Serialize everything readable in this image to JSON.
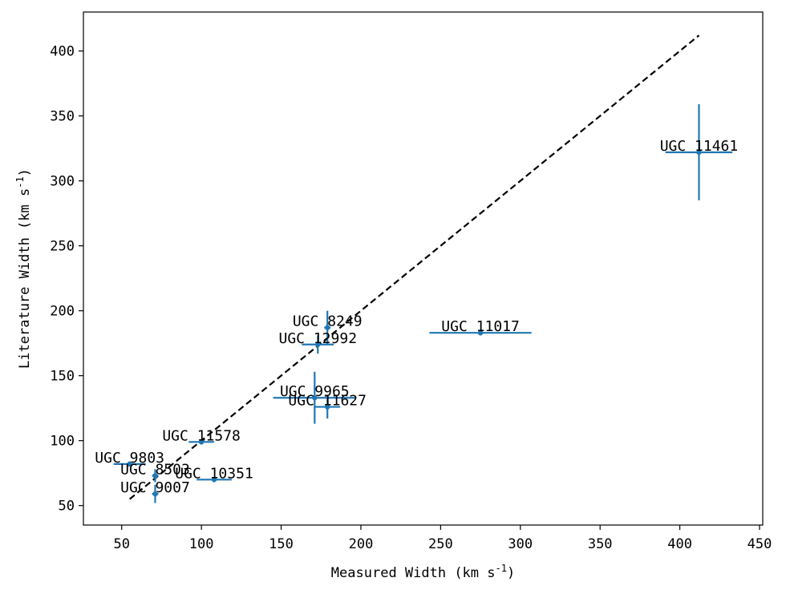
{
  "chart_data": {
    "type": "scatter",
    "title": "",
    "xlabel": "Measured Width (km s",
    "ylabel": "Literature Width (km s",
    "label_superscript": "-1",
    "label_suffix": ")",
    "xlim": [
      26,
      452
    ],
    "ylim": [
      35,
      430
    ],
    "xticks": [
      50,
      100,
      150,
      200,
      250,
      300,
      350,
      400,
      450
    ],
    "yticks": [
      50,
      100,
      150,
      200,
      250,
      300,
      350,
      400
    ],
    "grid": false,
    "colors": {
      "points": "#1f77b4",
      "reference_line": "#000000"
    },
    "reference_line": {
      "style": "dashed",
      "x": [
        55,
        412
      ],
      "y": [
        55,
        412
      ]
    },
    "points": [
      {
        "label": "UGC 11461",
        "x": 412,
        "y": 322,
        "xerr": 21,
        "yerr": 37
      },
      {
        "label": "UGC 8249",
        "x": 179,
        "y": 187,
        "xerr": 2,
        "yerr": 13
      },
      {
        "label": "UGC 11017",
        "x": 275,
        "y": 183,
        "xerr": 32,
        "yerr": 2
      },
      {
        "label": "UGC 12992",
        "x": 173,
        "y": 174,
        "xerr": 10,
        "yerr": 7
      },
      {
        "label": "UGC 9965",
        "x": 171,
        "y": 133,
        "xerr": 26,
        "yerr": 20
      },
      {
        "label": "UGC 11627",
        "x": 179,
        "y": 126,
        "xerr": 8,
        "yerr": 9
      },
      {
        "label": "UGC 11578",
        "x": 100,
        "y": 99,
        "xerr": 8,
        "yerr": 2
      },
      {
        "label": "UGC 9803",
        "x": 55,
        "y": 82,
        "xerr": 10,
        "yerr": 2
      },
      {
        "label": "UGC 8503",
        "x": 71,
        "y": 73,
        "xerr": 2,
        "yerr": 5
      },
      {
        "label": "UGC 10351",
        "x": 108,
        "y": 70,
        "xerr": 11,
        "yerr": 2
      },
      {
        "label": "UGC 9007",
        "x": 71,
        "y": 59,
        "xerr": 2,
        "yerr": 7
      }
    ]
  }
}
